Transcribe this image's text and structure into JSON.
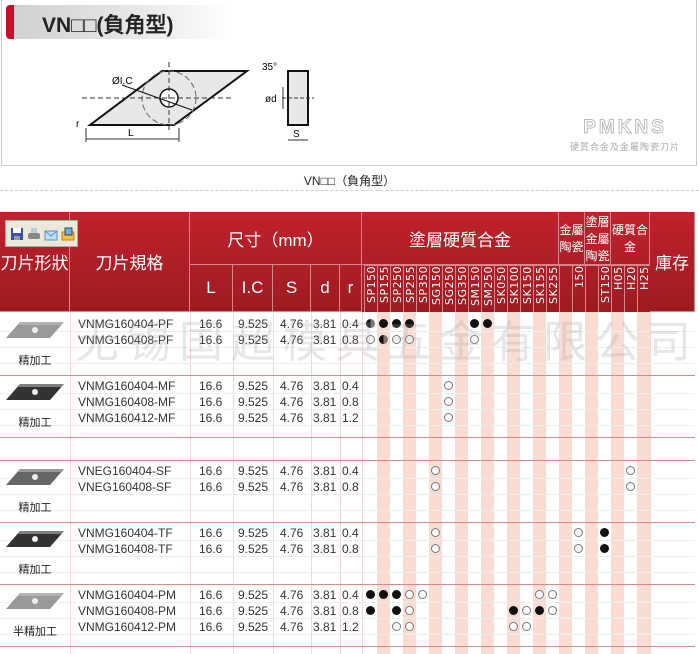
{
  "title": "VN□□(負角型)",
  "diagram": {
    "ic_label": "ØI.C",
    "angle_label": "35°",
    "d_label": "ød",
    "s_label": "S",
    "l_label": "L",
    "r_label": "r"
  },
  "logo": {
    "text": "PMKNS",
    "subtitle": "硬質合金及金屬陶瓷刀片"
  },
  "caption": "VN□□（負角型）",
  "watermark": "无锡国超模具五金有限公司",
  "toolbar": {
    "icons": [
      "save-icon",
      "print-icon",
      "email-icon",
      "picture-icon"
    ]
  },
  "colors": {
    "header_red": "#b01e27",
    "stripe": "#fbdcd2"
  },
  "header": {
    "shape": "刀片形狀",
    "spec": "刀片規格",
    "dims": "尺寸（mm）",
    "L": "L",
    "IC": "I.C",
    "S": "S",
    "d": "d",
    "r": "r",
    "coated": "塗層硬質合金",
    "cermet": "金屬陶瓷",
    "coated_cermet": "塗層金屬陶瓷",
    "carbide": "硬質合金",
    "stock": "庫存",
    "grades": [
      "SP150",
      "SP155",
      "SP250",
      "SP255",
      "SP350",
      "SG150",
      "SG250",
      "SG350",
      "SM150",
      "SM250",
      "SK050",
      "SK100",
      "SK150",
      "SK155",
      "SK255",
      "",
      "150",
      "",
      "ST150",
      "H05",
      "H20",
      "H25"
    ]
  },
  "groups": [
    {
      "label": "精加工",
      "style": "light",
      "rows": [
        {
          "spec": "VNMG160404-PF",
          "L": "16.6",
          "IC": "9.525",
          "S": "4.76",
          "d": "3.81",
          "r": "0.4",
          "marks": {
            "SP150": "half",
            "SP155": "full",
            "SP250": "full",
            "SP255": "full",
            "SM150": "full",
            "SM250": "full"
          }
        },
        {
          "spec": "VNMG160408-PF",
          "L": "16.6",
          "IC": "9.525",
          "S": "4.76",
          "d": "3.81",
          "r": "0.8",
          "marks": {
            "SP150": "open",
            "SP155": "half",
            "SP250": "open",
            "SP255": "open",
            "SM150": "open"
          }
        }
      ]
    },
    {
      "label": "精加工",
      "style": "dark",
      "rows": [
        {
          "spec": "VNMG160404-MF",
          "L": "16.6",
          "IC": "9.525",
          "S": "4.76",
          "d": "3.81",
          "r": "0.4",
          "marks": {
            "SG250": "open"
          }
        },
        {
          "spec": "VNMG160408-MF",
          "L": "16.6",
          "IC": "9.525",
          "S": "4.76",
          "d": "3.81",
          "r": "0.8",
          "marks": {
            "SG250": "open"
          }
        },
        {
          "spec": "VNMG160412-MF",
          "L": "16.6",
          "IC": "9.525",
          "S": "4.76",
          "d": "3.81",
          "r": "1.2",
          "marks": {
            "SG250": "open"
          }
        }
      ]
    },
    {
      "label": "精加工",
      "style": "mid",
      "rows": [
        {
          "spec": "VNEG160404-SF",
          "L": "16.6",
          "IC": "9.525",
          "S": "4.76",
          "d": "3.81",
          "r": "0.4",
          "marks": {
            "SG150": "open",
            "H20": "open"
          }
        },
        {
          "spec": "VNEG160408-SF",
          "L": "16.6",
          "IC": "9.525",
          "S": "4.76",
          "d": "3.81",
          "r": "0.8",
          "marks": {
            "SG150": "open",
            "H20": "open"
          }
        }
      ]
    },
    {
      "label": "精加工",
      "style": "dark",
      "rows": [
        {
          "spec": "VNMG160404-TF",
          "L": "16.6",
          "IC": "9.525",
          "S": "4.76",
          "d": "3.81",
          "r": "0.4",
          "marks": {
            "SG150": "open",
            "150": "open",
            "ST150": "full"
          }
        },
        {
          "spec": "VNMG160408-TF",
          "L": "16.6",
          "IC": "9.525",
          "S": "4.76",
          "d": "3.81",
          "r": "0.8",
          "marks": {
            "SG150": "open",
            "150": "open",
            "ST150": "full"
          }
        }
      ]
    },
    {
      "label": "半精加工",
      "style": "light",
      "rows": [
        {
          "spec": "VNMG160404-PM",
          "L": "16.6",
          "IC": "9.525",
          "S": "4.76",
          "d": "3.81",
          "r": "0.4",
          "marks": {
            "SP150": "full",
            "SP155": "full",
            "SP250": "full",
            "SP255": "open",
            "SP350": "open",
            "SK155": "open",
            "SK255": "open"
          }
        },
        {
          "spec": "VNMG160408-PM",
          "L": "16.6",
          "IC": "9.525",
          "S": "4.76",
          "d": "3.81",
          "r": "0.8",
          "marks": {
            "SP150": "full",
            "SP250": "full",
            "SP255": "open",
            "SK100": "full",
            "SK150": "open",
            "SK155": "full",
            "SK255": "open"
          }
        },
        {
          "spec": "VNMG160412-PM",
          "L": "16.6",
          "IC": "9.525",
          "S": "4.76",
          "d": "3.81",
          "r": "1.2",
          "marks": {
            "SP250": "open",
            "SP255": "open",
            "SK100": "open",
            "SK150": "open"
          }
        }
      ]
    }
  ]
}
